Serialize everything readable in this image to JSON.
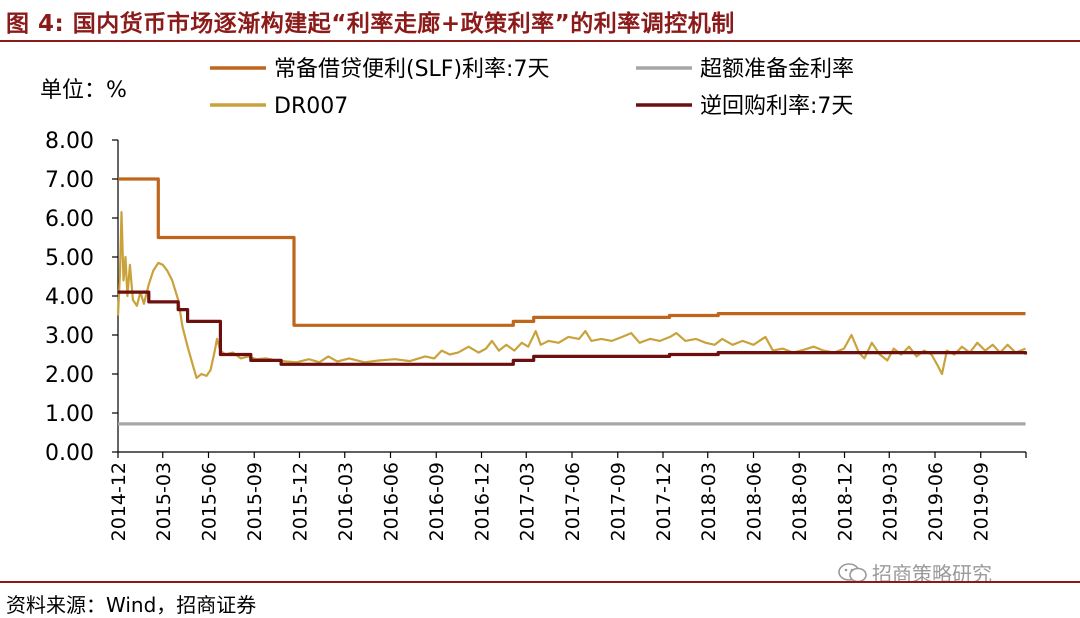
{
  "figure": {
    "title": "图 4:  国内货币市场逐渐构建起“利率走廊+政策利率”的利率调控机制",
    "source": "资料来源：Wind，招商证券",
    "watermark": "招商策略研究",
    "title_color": "#8B1A1A"
  },
  "chart_data": {
    "type": "line",
    "unit_label": "单位：%",
    "ylim": [
      0,
      8
    ],
    "yticks": [
      "0.00",
      "1.00",
      "2.00",
      "3.00",
      "4.00",
      "5.00",
      "6.00",
      "7.00",
      "8.00"
    ],
    "xlim": [
      "2014-12",
      "2019-12"
    ],
    "xticks": [
      "2014-12",
      "2015-03",
      "2015-06",
      "2015-09",
      "2015-12",
      "2016-03",
      "2016-06",
      "2016-09",
      "2016-12",
      "2017-03",
      "2017-06",
      "2017-09",
      "2017-12",
      "2018-03",
      "2018-06",
      "2018-09",
      "2018-12",
      "2019-03",
      "2019-06",
      "2019-09"
    ],
    "grid": false,
    "legend_placement": "top",
    "series": [
      {
        "name": "常备借贷便利(SLF)利率:7天",
        "color": "#C0661C",
        "step": true,
        "points": [
          [
            "2014-12-01",
            7.0
          ],
          [
            "2015-02-20",
            5.5
          ],
          [
            "2015-11-20",
            3.25
          ],
          [
            "2017-02-03",
            3.35
          ],
          [
            "2017-03-16",
            3.45
          ],
          [
            "2017-12-14",
            3.5
          ],
          [
            "2018-03-22",
            3.55
          ],
          [
            "2019-11-30",
            3.55
          ]
        ]
      },
      {
        "name": "超额准备金利率",
        "color": "#A6A6A6",
        "step": true,
        "points": [
          [
            "2014-12-01",
            0.72
          ],
          [
            "2019-11-30",
            0.72
          ]
        ]
      },
      {
        "name": "DR007",
        "color": "#C9A23C",
        "step": false,
        "points": [
          [
            "2014-12-01",
            3.5
          ],
          [
            "2014-12-05",
            4.6
          ],
          [
            "2014-12-08",
            6.15
          ],
          [
            "2014-12-12",
            4.4
          ],
          [
            "2014-12-16",
            5.0
          ],
          [
            "2014-12-20",
            4.0
          ],
          [
            "2014-12-25",
            4.8
          ],
          [
            "2014-12-31",
            3.9
          ],
          [
            "2015-01-08",
            3.75
          ],
          [
            "2015-01-15",
            4.1
          ],
          [
            "2015-01-22",
            3.8
          ],
          [
            "2015-02-01",
            4.3
          ],
          [
            "2015-02-10",
            4.65
          ],
          [
            "2015-02-20",
            4.85
          ],
          [
            "2015-03-01",
            4.8
          ],
          [
            "2015-03-10",
            4.65
          ],
          [
            "2015-03-20",
            4.4
          ],
          [
            "2015-04-01",
            3.9
          ],
          [
            "2015-04-10",
            3.2
          ],
          [
            "2015-04-20",
            2.7
          ],
          [
            "2015-05-01",
            2.2
          ],
          [
            "2015-05-08",
            1.9
          ],
          [
            "2015-05-18",
            2.0
          ],
          [
            "2015-05-28",
            1.95
          ],
          [
            "2015-06-05",
            2.1
          ],
          [
            "2015-06-12",
            2.5
          ],
          [
            "2015-06-18",
            2.9
          ],
          [
            "2015-06-25",
            2.6
          ],
          [
            "2015-07-05",
            2.5
          ],
          [
            "2015-07-20",
            2.55
          ],
          [
            "2015-08-05",
            2.4
          ],
          [
            "2015-08-20",
            2.45
          ],
          [
            "2015-09-05",
            2.38
          ],
          [
            "2015-09-25",
            2.4
          ],
          [
            "2015-10-15",
            2.35
          ],
          [
            "2015-11-05",
            2.32
          ],
          [
            "2015-11-25",
            2.3
          ],
          [
            "2015-12-20",
            2.38
          ],
          [
            "2016-01-10",
            2.3
          ],
          [
            "2016-01-28",
            2.45
          ],
          [
            "2016-02-15",
            2.32
          ],
          [
            "2016-03-10",
            2.4
          ],
          [
            "2016-04-10",
            2.3
          ],
          [
            "2016-05-10",
            2.35
          ],
          [
            "2016-06-10",
            2.38
          ],
          [
            "2016-07-10",
            2.33
          ],
          [
            "2016-08-10",
            2.45
          ],
          [
            "2016-08-28",
            2.4
          ],
          [
            "2016-09-12",
            2.6
          ],
          [
            "2016-09-28",
            2.5
          ],
          [
            "2016-10-15",
            2.55
          ],
          [
            "2016-11-05",
            2.7
          ],
          [
            "2016-11-25",
            2.55
          ],
          [
            "2016-12-10",
            2.65
          ],
          [
            "2016-12-22",
            2.85
          ],
          [
            "2017-01-05",
            2.6
          ],
          [
            "2017-01-20",
            2.75
          ],
          [
            "2017-02-05",
            2.6
          ],
          [
            "2017-02-20",
            2.8
          ],
          [
            "2017-03-05",
            2.7
          ],
          [
            "2017-03-20",
            3.1
          ],
          [
            "2017-03-30",
            2.75
          ],
          [
            "2017-04-15",
            2.85
          ],
          [
            "2017-05-05",
            2.8
          ],
          [
            "2017-05-25",
            2.95
          ],
          [
            "2017-06-15",
            2.9
          ],
          [
            "2017-06-28",
            3.1
          ],
          [
            "2017-07-10",
            2.85
          ],
          [
            "2017-07-30",
            2.9
          ],
          [
            "2017-08-20",
            2.85
          ],
          [
            "2017-09-10",
            2.95
          ],
          [
            "2017-09-28",
            3.05
          ],
          [
            "2017-10-15",
            2.8
          ],
          [
            "2017-11-05",
            2.9
          ],
          [
            "2017-11-25",
            2.85
          ],
          [
            "2017-12-15",
            2.95
          ],
          [
            "2017-12-28",
            3.05
          ],
          [
            "2018-01-15",
            2.85
          ],
          [
            "2018-02-05",
            2.9
          ],
          [
            "2018-02-25",
            2.8
          ],
          [
            "2018-03-15",
            2.75
          ],
          [
            "2018-03-30",
            2.9
          ],
          [
            "2018-04-20",
            2.75
          ],
          [
            "2018-05-10",
            2.85
          ],
          [
            "2018-06-01",
            2.75
          ],
          [
            "2018-06-25",
            2.95
          ],
          [
            "2018-07-10",
            2.6
          ],
          [
            "2018-07-30",
            2.65
          ],
          [
            "2018-08-20",
            2.55
          ],
          [
            "2018-09-10",
            2.62
          ],
          [
            "2018-09-30",
            2.7
          ],
          [
            "2018-10-20",
            2.6
          ],
          [
            "2018-11-10",
            2.55
          ],
          [
            "2018-11-30",
            2.65
          ],
          [
            "2018-12-15",
            3.0
          ],
          [
            "2018-12-30",
            2.55
          ],
          [
            "2019-01-10",
            2.4
          ],
          [
            "2019-01-25",
            2.8
          ],
          [
            "2019-02-10",
            2.5
          ],
          [
            "2019-02-25",
            2.35
          ],
          [
            "2019-03-10",
            2.65
          ],
          [
            "2019-03-25",
            2.5
          ],
          [
            "2019-04-10",
            2.7
          ],
          [
            "2019-04-25",
            2.45
          ],
          [
            "2019-05-10",
            2.6
          ],
          [
            "2019-05-25",
            2.5
          ],
          [
            "2019-06-05",
            2.25
          ],
          [
            "2019-06-15",
            2.0
          ],
          [
            "2019-06-25",
            2.6
          ],
          [
            "2019-07-10",
            2.5
          ],
          [
            "2019-07-25",
            2.7
          ],
          [
            "2019-08-10",
            2.55
          ],
          [
            "2019-08-25",
            2.8
          ],
          [
            "2019-09-10",
            2.6
          ],
          [
            "2019-09-25",
            2.75
          ],
          [
            "2019-10-10",
            2.55
          ],
          [
            "2019-10-25",
            2.75
          ],
          [
            "2019-11-10",
            2.55
          ],
          [
            "2019-11-30",
            2.65
          ]
        ]
      },
      {
        "name": "逆回购利率:7天",
        "color": "#6B0F0F",
        "step": true,
        "points": [
          [
            "2014-12-01",
            4.1
          ],
          [
            "2015-02-01",
            3.85
          ],
          [
            "2015-04-01",
            3.65
          ],
          [
            "2015-04-20",
            3.35
          ],
          [
            "2015-06-25",
            2.5
          ],
          [
            "2015-08-25",
            2.35
          ],
          [
            "2015-10-25",
            2.25
          ],
          [
            "2017-02-03",
            2.35
          ],
          [
            "2017-03-16",
            2.45
          ],
          [
            "2017-12-14",
            2.5
          ],
          [
            "2018-03-22",
            2.55
          ],
          [
            "2019-11-30",
            2.5
          ]
        ]
      }
    ]
  }
}
